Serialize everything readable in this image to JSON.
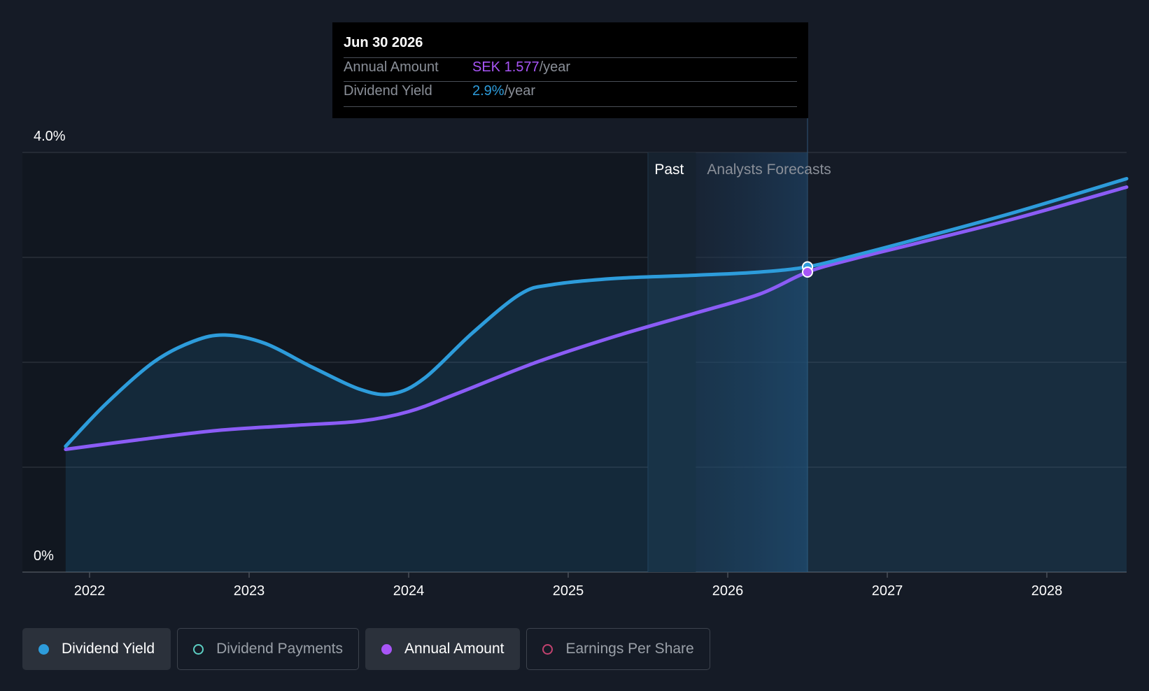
{
  "tooltip": {
    "date": "Jun 30 2026",
    "rows": [
      {
        "label": "Annual Amount",
        "value": "SEK 1.577",
        "unit": "/year",
        "color": "#a855f7"
      },
      {
        "label": "Dividend Yield",
        "value": "2.9%",
        "unit": "/year",
        "color": "#2d9cdb"
      }
    ]
  },
  "chart_data": {
    "type": "line",
    "title": "",
    "xlabel": "",
    "ylabel": "",
    "xlim": [
      2021.85,
      2028.5
    ],
    "ylim": [
      0,
      4
    ],
    "y_tick_labels": [
      {
        "value": 4,
        "label": "4.0%"
      },
      {
        "value": 0,
        "label": "0%"
      }
    ],
    "gridlines": [
      0,
      1,
      2,
      3,
      4
    ],
    "x_ticks": [
      2022,
      2023,
      2024,
      2025,
      2026,
      2027,
      2028
    ],
    "past_boundary": 2025.5,
    "forecast_start": 2025.8,
    "tooltip_x": 2026.5,
    "regions": {
      "past_label": "Past",
      "forecast_label": "Analysts Forecasts"
    },
    "series": [
      {
        "name": "Dividend Yield",
        "color": "#2d9cdb",
        "points": [
          [
            2021.85,
            1.2
          ],
          [
            2022.1,
            1.6
          ],
          [
            2022.4,
            2.0
          ],
          [
            2022.65,
            2.2
          ],
          [
            2022.85,
            2.26
          ],
          [
            2023.1,
            2.18
          ],
          [
            2023.4,
            1.95
          ],
          [
            2023.7,
            1.74
          ],
          [
            2023.9,
            1.7
          ],
          [
            2024.1,
            1.85
          ],
          [
            2024.4,
            2.28
          ],
          [
            2024.7,
            2.65
          ],
          [
            2024.9,
            2.74
          ],
          [
            2025.3,
            2.8
          ],
          [
            2025.8,
            2.83
          ],
          [
            2026.2,
            2.86
          ],
          [
            2026.5,
            2.91
          ],
          [
            2026.8,
            3.02
          ],
          [
            2027.2,
            3.18
          ],
          [
            2027.8,
            3.43
          ],
          [
            2028.5,
            3.75
          ]
        ]
      },
      {
        "name": "Annual Amount",
        "color": "#8b5cf6",
        "points": [
          [
            2021.85,
            1.17
          ],
          [
            2022.3,
            1.26
          ],
          [
            2022.8,
            1.35
          ],
          [
            2023.3,
            1.4
          ],
          [
            2023.7,
            1.44
          ],
          [
            2024.0,
            1.53
          ],
          [
            2024.3,
            1.7
          ],
          [
            2024.8,
            2.0
          ],
          [
            2025.3,
            2.25
          ],
          [
            2025.8,
            2.47
          ],
          [
            2026.2,
            2.65
          ],
          [
            2026.5,
            2.86
          ],
          [
            2026.8,
            2.99
          ],
          [
            2027.2,
            3.14
          ],
          [
            2027.8,
            3.37
          ],
          [
            2028.5,
            3.67
          ]
        ]
      }
    ]
  },
  "legend": [
    {
      "label": "Dividend Yield",
      "active": true,
      "color": "#2d9cdb",
      "filled": true
    },
    {
      "label": "Dividend Payments",
      "active": false,
      "color": "#5ccfc3",
      "filled": false
    },
    {
      "label": "Annual Amount",
      "active": true,
      "color": "#a855f7",
      "filled": true
    },
    {
      "label": "Earnings Per Share",
      "active": false,
      "color": "#c2426f",
      "filled": false
    }
  ]
}
